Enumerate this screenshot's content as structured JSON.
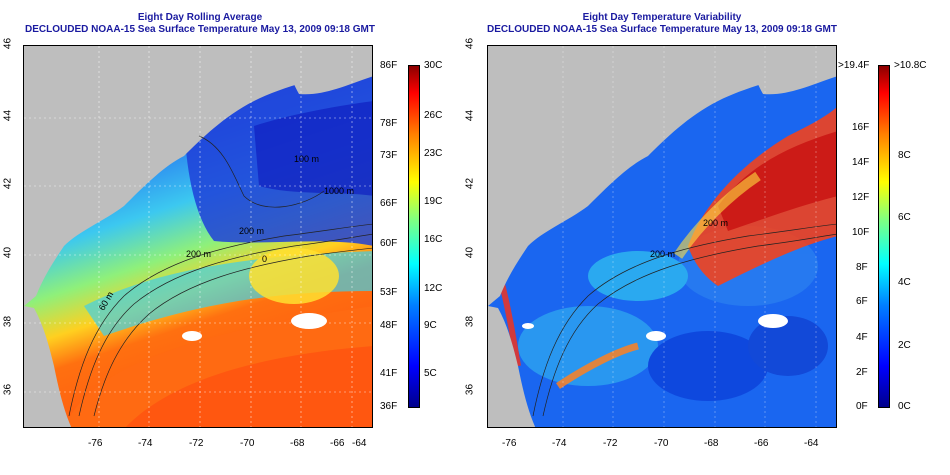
{
  "left_panel": {
    "title_line1": "Eight Day Rolling Average",
    "title_line2": "DECLOUDED NOAA-15 Sea Surface Temperature May 13, 2009 09:18 GMT",
    "lat_ticks": [
      "46",
      "44",
      "42",
      "40",
      "38",
      "36"
    ],
    "lon_ticks": [
      "-76",
      "-74",
      "-72",
      "-70",
      "-68",
      "-66",
      "-64"
    ],
    "contour_labels": [
      "200 m",
      "100 m",
      "60 m",
      "1000 m",
      "200 m",
      "0"
    ],
    "colorbar_f": [
      "86F",
      "78F",
      "73F",
      "66F",
      "60F",
      "53F",
      "48F",
      "41F",
      "36F"
    ],
    "colorbar_c": [
      "30C",
      "26C",
      "23C",
      "19C",
      "16C",
      "12C",
      "9C",
      "5C"
    ]
  },
  "right_panel": {
    "title_line1": "Eight Day Temperature Variability",
    "title_line2": "DECLOUDED NOAA-15 Sea Surface Temperature May 13, 2009 09:18 GMT",
    "lat_ticks": [
      "46",
      "44",
      "42",
      "40",
      "38",
      "36"
    ],
    "lon_ticks": [
      "-76",
      "-74",
      "-72",
      "-70",
      "-68",
      "-66",
      "-64"
    ],
    "contour_labels": [
      "200 m",
      "200 m"
    ],
    "colorbar_f": [
      ">19.4F",
      "16F",
      "14F",
      "12F",
      "10F",
      "8F",
      "6F",
      "4F",
      "2F",
      "0F"
    ],
    "colorbar_c": [
      ">10.8C",
      "8C",
      "6C",
      "4C",
      "2C",
      "0C"
    ]
  },
  "colors": {
    "land": "#bebebe",
    "title": "#1a1aa0",
    "jet": [
      "#00008b",
      "#0000ff",
      "#0080ff",
      "#00ffff",
      "#80ff80",
      "#ffff00",
      "#ff8000",
      "#ff0000",
      "#8b0000"
    ]
  }
}
